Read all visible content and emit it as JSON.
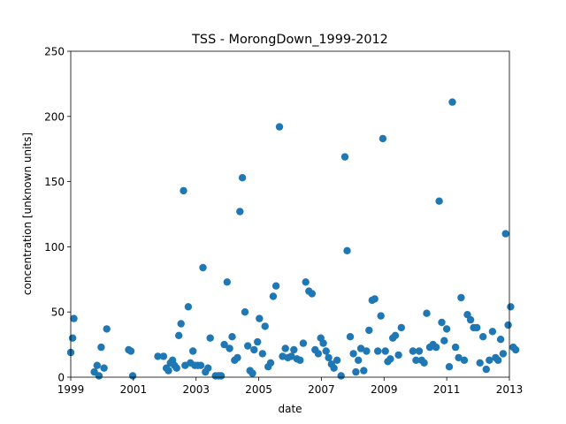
{
  "chart_data": {
    "type": "scatter",
    "title": "TSS - MorongDown_1999-2012",
    "xlabel": "date",
    "ylabel": "concentration [unknown units]",
    "xlim": [
      1999.0,
      2013.0
    ],
    "ylim": [
      0,
      250
    ],
    "grid": false,
    "x_ticks": [
      {
        "value": 1999,
        "label": "1999"
      },
      {
        "value": 2001,
        "label": "2001"
      },
      {
        "value": 2003,
        "label": "2003"
      },
      {
        "value": 2005,
        "label": "2005"
      },
      {
        "value": 2007,
        "label": "2007"
      },
      {
        "value": 2009,
        "label": "2009"
      },
      {
        "value": 2011,
        "label": "2011"
      },
      {
        "value": 2013,
        "label": "2013"
      }
    ],
    "y_ticks": [
      {
        "value": 0,
        "label": "0"
      },
      {
        "value": 50,
        "label": "50"
      },
      {
        "value": 100,
        "label": "100"
      },
      {
        "value": 150,
        "label": "150"
      },
      {
        "value": 200,
        "label": "200"
      },
      {
        "value": 250,
        "label": "250"
      }
    ],
    "marker_color": "#1f77b4",
    "points": [
      [
        1999.0,
        19
      ],
      [
        1999.06,
        30
      ],
      [
        1999.1,
        45
      ],
      [
        1999.75,
        4
      ],
      [
        1999.84,
        9
      ],
      [
        1999.9,
        1
      ],
      [
        1999.97,
        23
      ],
      [
        2000.06,
        7
      ],
      [
        2000.15,
        37
      ],
      [
        2000.85,
        21
      ],
      [
        2000.92,
        20
      ],
      [
        2000.98,
        1
      ],
      [
        2001.78,
        16
      ],
      [
        2001.96,
        16
      ],
      [
        2002.05,
        7
      ],
      [
        2002.12,
        5
      ],
      [
        2002.18,
        11
      ],
      [
        2002.25,
        13
      ],
      [
        2002.31,
        9
      ],
      [
        2002.38,
        7
      ],
      [
        2002.45,
        32
      ],
      [
        2002.52,
        41
      ],
      [
        2002.6,
        143
      ],
      [
        2002.65,
        9
      ],
      [
        2002.75,
        54
      ],
      [
        2002.82,
        11
      ],
      [
        2002.9,
        20
      ],
      [
        2002.96,
        9
      ],
      [
        2003.05,
        9
      ],
      [
        2003.15,
        9
      ],
      [
        2003.22,
        84
      ],
      [
        2003.3,
        4
      ],
      [
        2003.38,
        7
      ],
      [
        2003.45,
        30
      ],
      [
        2003.62,
        1
      ],
      [
        2003.72,
        1
      ],
      [
        2003.8,
        1
      ],
      [
        2003.9,
        25
      ],
      [
        2003.99,
        73
      ],
      [
        2004.07,
        22
      ],
      [
        2004.15,
        31
      ],
      [
        2004.23,
        13
      ],
      [
        2004.32,
        15
      ],
      [
        2004.4,
        127
      ],
      [
        2004.48,
        153
      ],
      [
        2004.56,
        50
      ],
      [
        2004.65,
        24
      ],
      [
        2004.72,
        5
      ],
      [
        2004.8,
        3
      ],
      [
        2004.85,
        21
      ],
      [
        2004.96,
        27
      ],
      [
        2005.02,
        45
      ],
      [
        2005.12,
        18
      ],
      [
        2005.2,
        39
      ],
      [
        2005.3,
        8
      ],
      [
        2005.38,
        11
      ],
      [
        2005.46,
        62
      ],
      [
        2005.55,
        70
      ],
      [
        2005.66,
        192
      ],
      [
        2005.76,
        16
      ],
      [
        2005.85,
        22
      ],
      [
        2005.93,
        15
      ],
      [
        2006.04,
        16
      ],
      [
        2006.12,
        21
      ],
      [
        2006.22,
        14
      ],
      [
        2006.32,
        13
      ],
      [
        2006.42,
        26
      ],
      [
        2006.5,
        73
      ],
      [
        2006.6,
        66
      ],
      [
        2006.7,
        64
      ],
      [
        2006.8,
        21
      ],
      [
        2006.9,
        18
      ],
      [
        2006.98,
        30
      ],
      [
        2007.06,
        26
      ],
      [
        2007.15,
        20
      ],
      [
        2007.23,
        15
      ],
      [
        2007.32,
        10
      ],
      [
        2007.4,
        7
      ],
      [
        2007.5,
        13
      ],
      [
        2007.63,
        1
      ],
      [
        2007.75,
        169
      ],
      [
        2007.82,
        97
      ],
      [
        2007.92,
        31
      ],
      [
        2008.02,
        18
      ],
      [
        2008.1,
        4
      ],
      [
        2008.18,
        13
      ],
      [
        2008.26,
        22
      ],
      [
        2008.35,
        5
      ],
      [
        2008.44,
        20
      ],
      [
        2008.52,
        36
      ],
      [
        2008.62,
        59
      ],
      [
        2008.7,
        60
      ],
      [
        2008.8,
        20
      ],
      [
        2008.9,
        47
      ],
      [
        2008.96,
        183
      ],
      [
        2009.04,
        20
      ],
      [
        2009.12,
        12
      ],
      [
        2009.2,
        14
      ],
      [
        2009.28,
        30
      ],
      [
        2009.36,
        32
      ],
      [
        2009.46,
        17
      ],
      [
        2009.55,
        38
      ],
      [
        2009.92,
        20
      ],
      [
        2010.02,
        13
      ],
      [
        2010.12,
        20
      ],
      [
        2010.2,
        13
      ],
      [
        2010.28,
        11
      ],
      [
        2010.36,
        49
      ],
      [
        2010.46,
        23
      ],
      [
        2010.56,
        25
      ],
      [
        2010.66,
        23
      ],
      [
        2010.76,
        135
      ],
      [
        2010.84,
        42
      ],
      [
        2010.92,
        28
      ],
      [
        2011.0,
        37
      ],
      [
        2011.08,
        8
      ],
      [
        2011.18,
        211
      ],
      [
        2011.28,
        23
      ],
      [
        2011.38,
        15
      ],
      [
        2011.46,
        61
      ],
      [
        2011.56,
        13
      ],
      [
        2011.66,
        48
      ],
      [
        2011.76,
        44
      ],
      [
        2011.86,
        38
      ],
      [
        2011.96,
        38
      ],
      [
        2012.06,
        11
      ],
      [
        2012.16,
        31
      ],
      [
        2012.26,
        6
      ],
      [
        2012.36,
        13
      ],
      [
        2012.46,
        35
      ],
      [
        2012.56,
        15
      ],
      [
        2012.64,
        13
      ],
      [
        2012.72,
        29
      ],
      [
        2012.8,
        18
      ],
      [
        2012.88,
        110
      ],
      [
        2012.96,
        40
      ],
      [
        2013.04,
        54
      ],
      [
        2013.12,
        23
      ],
      [
        2013.2,
        21
      ]
    ]
  }
}
